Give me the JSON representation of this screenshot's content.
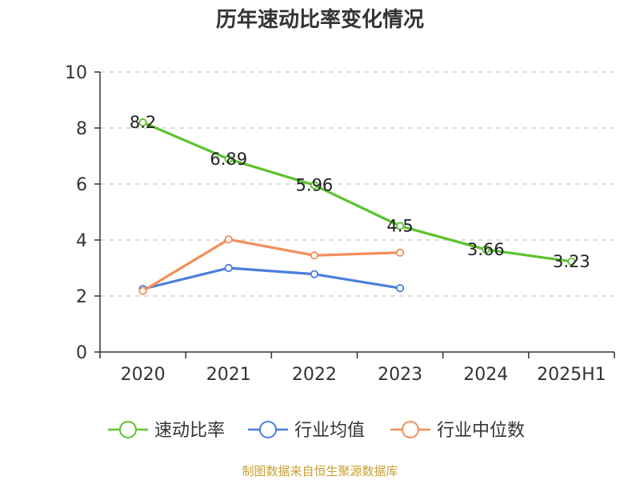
{
  "chart_data": {
    "type": "line",
    "title": "历年速动比率变化情况",
    "categories": [
      "2020",
      "2021",
      "2022",
      "2023",
      "2024",
      "2025H1"
    ],
    "ylim": [
      0,
      10
    ],
    "y_ticks": [
      "0",
      "2",
      "4",
      "6",
      "8",
      "10"
    ],
    "grid": true,
    "legend_position": "bottom",
    "series": [
      {
        "name": "速动比率",
        "color": "#5cc22e",
        "values": [
          8.2,
          6.89,
          5.96,
          4.5,
          3.66,
          3.23
        ],
        "labels": [
          "8.2",
          "6.89",
          "5.96",
          "4.5",
          "3.66",
          "3.23"
        ]
      },
      {
        "name": "行业均值",
        "color": "#4a7fdc",
        "values": [
          2.25,
          3.0,
          2.78,
          2.28,
          null,
          null
        ]
      },
      {
        "name": "行业中位数",
        "color": "#f28e5a",
        "values": [
          2.18,
          4.02,
          3.45,
          3.55,
          null,
          null
        ]
      }
    ]
  },
  "source": "制图数据来自恒生聚源数据库"
}
